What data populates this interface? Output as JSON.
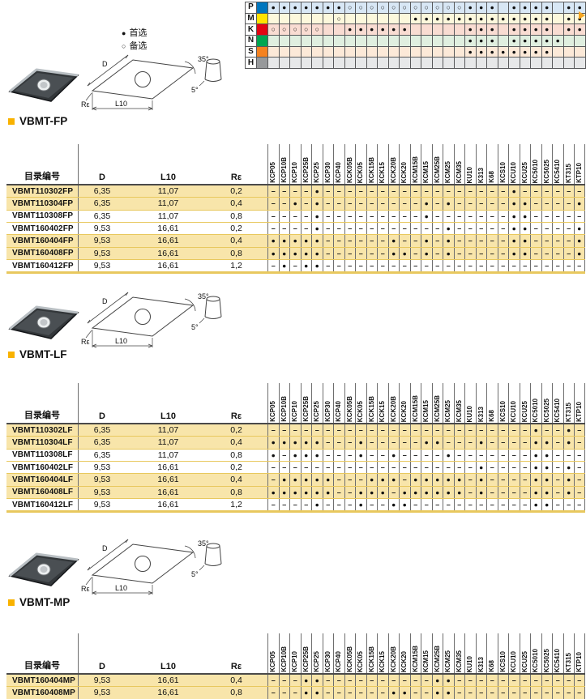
{
  "legend": {
    "preferred_symbol": "●",
    "preferred_label": "首选",
    "alternate_symbol": "○",
    "alternate_label": "备选"
  },
  "iso_grid": {
    "rows": [
      {
        "letter": "P",
        "color": "#0076BE",
        "tint": "#D8E7F5",
        "cells": [
          "d",
          "d",
          "d",
          "d",
          "d",
          "d",
          "d",
          "c",
          "c",
          "c",
          "c",
          "c",
          "c",
          "c",
          "c",
          "c",
          "c",
          "c",
          "d",
          "d",
          "d",
          "",
          "d",
          "d",
          "d",
          "d",
          "",
          "d",
          "d"
        ]
      },
      {
        "letter": "M",
        "color": "#FFE300",
        "tint": "#FCF8DC",
        "cells": [
          "",
          "",
          "",
          "",
          "",
          "",
          "c",
          "",
          "",
          "",
          "",
          "",
          "",
          "d",
          "d",
          "d",
          "d",
          "d",
          "d",
          "d",
          "d",
          "d",
          "d",
          "d",
          "d",
          "d",
          "",
          "d",
          "d"
        ]
      },
      {
        "letter": "K",
        "color": "#E30613",
        "tint": "#F9DCD2",
        "cells": [
          "c",
          "c",
          "c",
          "c",
          "c",
          "",
          "",
          "d",
          "d",
          "d",
          "d",
          "d",
          "d",
          "",
          "",
          "",
          "",
          "",
          "d",
          "d",
          "d",
          "",
          "d",
          "d",
          "d",
          "d",
          "",
          "d",
          "d"
        ]
      },
      {
        "letter": "N",
        "color": "#00A651",
        "tint": "#E0EFE0",
        "cells": [
          "",
          "",
          "",
          "",
          "",
          "",
          "",
          "",
          "",
          "",
          "",
          "",
          "",
          "",
          "",
          "",
          "",
          "",
          "d",
          "d",
          "d",
          "",
          "d",
          "d",
          "d",
          "d",
          "d",
          "",
          ""
        ]
      },
      {
        "letter": "S",
        "color": "#F58220",
        "tint": "#FCE9D8",
        "cells": [
          "",
          "",
          "",
          "",
          "",
          "",
          "",
          "",
          "",
          "",
          "",
          "",
          "",
          "",
          "",
          "",
          "",
          "",
          "d",
          "d",
          "d",
          "d",
          "d",
          "d",
          "d",
          "d",
          "",
          "",
          ""
        ]
      },
      {
        "letter": "H",
        "color": "#97999B",
        "tint": "#E7E8E9",
        "cells": [
          "",
          "",
          "",
          "",
          "",
          "",
          "",
          "",
          "",
          "",
          "",
          "",
          "",
          "",
          "",
          "",
          "",
          "",
          "",
          "",
          "",
          "",
          "",
          "",
          "",
          "",
          "",
          "",
          ""
        ]
      }
    ]
  },
  "grades": [
    "KCP05",
    "KCP10B",
    "KCP10",
    "KCP25B",
    "KCP25",
    "KCP30",
    "KCP40",
    "KCK05B",
    "KCK05",
    "KCK15B",
    "KCK15",
    "KCK20B",
    "KCK20",
    "KCM15B",
    "KCM15",
    "KCM25B",
    "KCM25",
    "KCM35",
    "KU10",
    "K313",
    "K68",
    "KCS10",
    "KCU10",
    "KCU25",
    "KC5010",
    "KC5025",
    "KC5410",
    "KT315",
    "KTP10"
  ],
  "table_columns": [
    "目录编号",
    "D",
    "L10",
    "Rε"
  ],
  "diagram_labels": {
    "d": "D",
    "l10": "L10",
    "re": "Rε",
    "angle_main": "35°",
    "angle_clear": "5°"
  },
  "sections": [
    {
      "title": "VBMT-FP",
      "rows": [
        {
          "catalog": "VBMT110302FP",
          "d": "6,35",
          "l10": "11,07",
          "re": "0,2",
          "hl": true,
          "dots": [
            5,
            23
          ]
        },
        {
          "catalog": "VBMT110304FP",
          "d": "6,35",
          "l10": "11,07",
          "re": "0,4",
          "hl": true,
          "dots": [
            3,
            5,
            15,
            17,
            23,
            24,
            29
          ]
        },
        {
          "catalog": "VBMT110308FP",
          "d": "6,35",
          "l10": "11,07",
          "re": "0,8",
          "hl": false,
          "dots": [
            5,
            15,
            23,
            24
          ]
        },
        {
          "catalog": "VBMT160402FP",
          "d": "9,53",
          "l10": "16,61",
          "re": "0,2",
          "hl": false,
          "dots": [
            5,
            17,
            23,
            24,
            29
          ]
        },
        {
          "catalog": "VBMT160404FP",
          "d": "9,53",
          "l10": "16,61",
          "re": "0,4",
          "hl": true,
          "dots": [
            1,
            2,
            3,
            4,
            5,
            12,
            15,
            17,
            23,
            24,
            29
          ]
        },
        {
          "catalog": "VBMT160408FP",
          "d": "9,53",
          "l10": "16,61",
          "re": "0,8",
          "hl": true,
          "dots": [
            1,
            2,
            3,
            4,
            5,
            12,
            13,
            15,
            17,
            23,
            24,
            29
          ]
        },
        {
          "catalog": "VBMT160412FP",
          "d": "9,53",
          "l10": "16,61",
          "re": "1,2",
          "hl": false,
          "dots": [
            2,
            4,
            5
          ]
        }
      ]
    },
    {
      "title": "VBMT-LF",
      "rows": [
        {
          "catalog": "VBMT110302LF",
          "d": "6,35",
          "l10": "11,07",
          "re": "0,2",
          "hl": true,
          "dots": [
            25,
            28
          ]
        },
        {
          "catalog": "VBMT110304LF",
          "d": "6,35",
          "l10": "11,07",
          "re": "0,4",
          "hl": true,
          "dots": [
            1,
            2,
            3,
            4,
            5,
            9,
            15,
            16,
            20,
            25,
            26,
            28
          ]
        },
        {
          "catalog": "VBMT110308LF",
          "d": "6,35",
          "l10": "11,07",
          "re": "0,8",
          "hl": false,
          "dots": [
            1,
            3,
            4,
            5,
            9,
            12,
            17,
            25,
            26
          ]
        },
        {
          "catalog": "VBMT160402LF",
          "d": "9,53",
          "l10": "16,61",
          "re": "0,2",
          "hl": false,
          "dots": [
            20,
            25,
            26,
            28
          ]
        },
        {
          "catalog": "VBMT160404LF",
          "d": "9,53",
          "l10": "16,61",
          "re": "0,4",
          "hl": true,
          "dots": [
            2,
            3,
            4,
            5,
            6,
            10,
            11,
            12,
            14,
            15,
            16,
            17,
            18,
            20,
            25,
            26,
            28
          ]
        },
        {
          "catalog": "VBMT160408LF",
          "d": "9,53",
          "l10": "16,61",
          "re": "0,8",
          "hl": true,
          "dots": [
            1,
            2,
            3,
            4,
            5,
            6,
            9,
            10,
            11,
            13,
            14,
            15,
            16,
            17,
            18,
            20,
            25,
            26,
            28
          ]
        },
        {
          "catalog": "VBMT160412LF",
          "d": "9,53",
          "l10": "16,61",
          "re": "1,2",
          "hl": false,
          "dots": [
            5,
            9,
            12,
            13,
            25,
            26
          ]
        }
      ]
    },
    {
      "title": "VBMT-MP",
      "rows": [
        {
          "catalog": "VBMT160404MP",
          "d": "9,53",
          "l10": "16,61",
          "re": "0,4",
          "hl": true,
          "dots": [
            4,
            5,
            16,
            17
          ]
        },
        {
          "catalog": "VBMT160408MP",
          "d": "9,53",
          "l10": "16,61",
          "re": "0,8",
          "hl": true,
          "dots": [
            4,
            5,
            12,
            13,
            16,
            17
          ]
        }
      ]
    }
  ],
  "accent": {
    "title_square": "#F9B200",
    "row_highlight": "#F8E5AA",
    "row_separator": "#E8C85E",
    "tab_arrow": "#F5A623"
  }
}
